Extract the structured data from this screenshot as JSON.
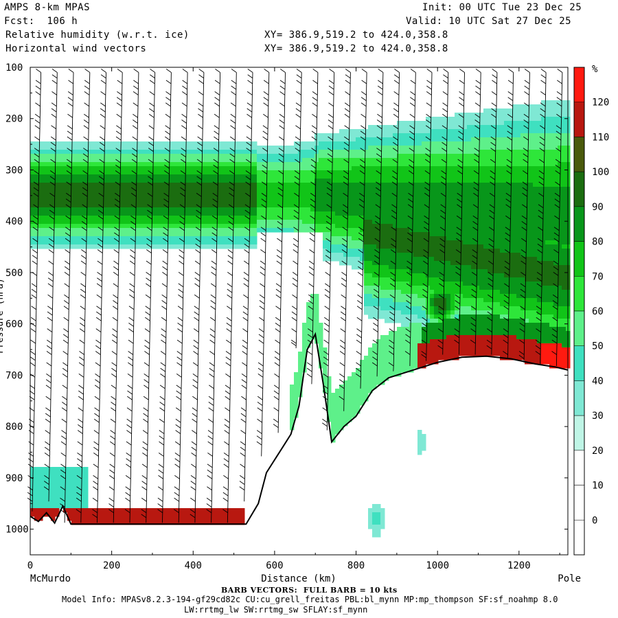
{
  "header": {
    "model": "AMPS 8-km MPAS",
    "fcst": "Fcst:  106 h",
    "field1": "Relative humidity (w.r.t. ice)",
    "field2": "Horizontal wind vectors",
    "init": "Init: 00 UTC Tue 23 Dec 25",
    "valid": "Valid: 10 UTC Sat 27 Dec 25",
    "xy1": "XY= 386.9,519.2 to 424.0,358.8",
    "xy2": "XY= 386.9,519.2 to 424.0,358.8"
  },
  "footer": {
    "barb_note": "BARB VECTORS:  FULL BARB = 10 kts",
    "model_info": "Model Info: MPASv8.2.3-194-gf29cd82c CU:cu_grell_freitas PBL:bl_mynn MP:mp_thompson SF:sf_noahmp 8.0",
    "model_info2": "LW:rrtmg_lw SW:rrtmg_sw SFLAY:sf_mynn"
  },
  "chart_data": {
    "type": "heatmap",
    "title": "Relative humidity (w.r.t. ice) and horizontal wind vectors cross-section",
    "xlabel": "Distance (km)",
    "ylabel": "Pressure (hPa)",
    "x_left_label": "McMurdo",
    "x_right_label": "Pole",
    "xlim": [
      0,
      1320
    ],
    "ylim": [
      1050,
      100
    ],
    "x_ticks": [
      0,
      200,
      400,
      600,
      800,
      1000,
      1200
    ],
    "y_ticks": [
      100,
      200,
      300,
      400,
      500,
      600,
      700,
      800,
      900,
      1000
    ],
    "colorbar": {
      "unit": "%",
      "levels": [
        0,
        10,
        20,
        30,
        40,
        50,
        60,
        70,
        80,
        90,
        100,
        110,
        120
      ],
      "colors": [
        "#ffffff",
        "#ffffff",
        "#ffffff",
        "#bff5e6",
        "#7fe8d4",
        "#3fe0c0",
        "#5ef08a",
        "#2ee63a",
        "#11c418",
        "#08961a",
        "#1b6d10",
        "#4a5a0c",
        "#b81810",
        "#ff1a10"
      ]
    },
    "terrain_pressure": [
      [
        0,
        975
      ],
      [
        20,
        985
      ],
      [
        40,
        968
      ],
      [
        60,
        988
      ],
      [
        80,
        955
      ],
      [
        100,
        990
      ],
      [
        530,
        990
      ],
      [
        560,
        950
      ],
      [
        580,
        890
      ],
      [
        600,
        865
      ],
      [
        620,
        840
      ],
      [
        640,
        815
      ],
      [
        660,
        760
      ],
      [
        680,
        650
      ],
      [
        700,
        620
      ],
      [
        720,
        720
      ],
      [
        740,
        830
      ],
      [
        770,
        800
      ],
      [
        800,
        780
      ],
      [
        820,
        755
      ],
      [
        840,
        730
      ],
      [
        880,
        705
      ],
      [
        940,
        690
      ],
      [
        1000,
        675
      ],
      [
        1060,
        665
      ],
      [
        1120,
        663
      ],
      [
        1180,
        668
      ],
      [
        1240,
        678
      ],
      [
        1290,
        684
      ],
      [
        1320,
        690
      ]
    ],
    "rh_features": [
      {
        "desc": "moist layer upper troposphere",
        "x_range": [
          0,
          600
        ],
        "p_range": [
          245,
          480
        ],
        "rh_max": 95
      },
      {
        "desc": "moist layer descending toward pole",
        "x_range": [
          600,
          1320
        ],
        "p_range": [
          270,
          700
        ],
        "rh_max": 95
      },
      {
        "desc": "saturated layer near plateau surface",
        "x_range": [
          960,
          1320
        ],
        "p_range": [
          610,
          690
        ],
        "rh_max": 125
      },
      {
        "desc": "near surface moist layer McMurdo side",
        "x_range": [
          0,
          530
        ],
        "p_range": [
          960,
          990
        ],
        "rh_max": 125
      }
    ],
    "barb_columns_km": [
      40,
      80,
      120,
      160,
      200,
      240,
      280,
      320,
      360,
      400,
      440,
      480,
      520,
      560,
      600,
      640,
      680,
      720,
      760,
      800,
      840,
      880,
      920,
      960,
      1000,
      1040,
      1080,
      1120,
      1160,
      1200,
      1240,
      1280,
      1320
    ]
  }
}
